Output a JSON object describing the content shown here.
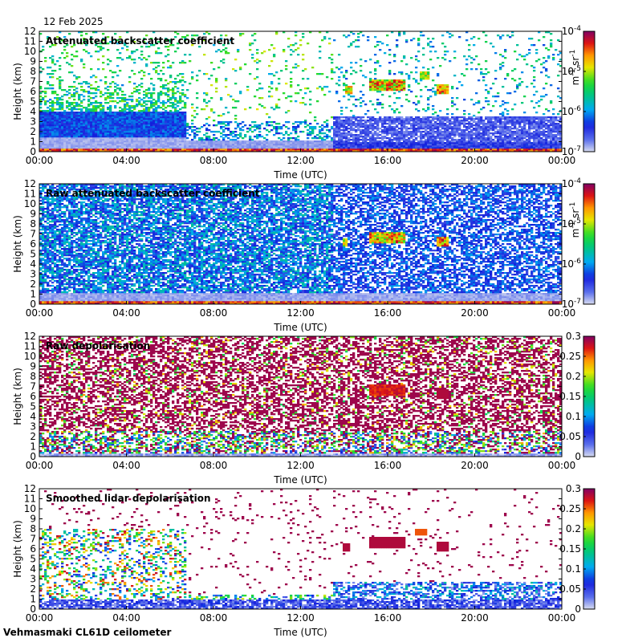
{
  "figure": {
    "date": "12 Feb 2025",
    "instrument": "Vehmasmaki CL61D ceilometer"
  },
  "chart_data": [
    {
      "type": "heatmap",
      "title": "Attenuated backscatter coefficient",
      "xlabel": "Time (UTC)",
      "ylabel": "Height (km)",
      "xticks": [
        "00:00",
        "04:00",
        "08:00",
        "12:00",
        "16:00",
        "20:00",
        "00:00"
      ],
      "yticks": [
        "0",
        "1",
        "2",
        "3",
        "4",
        "5",
        "6",
        "7",
        "8",
        "9",
        "10",
        "11",
        "12"
      ],
      "ylim": [
        0,
        12
      ],
      "xlim_hours": [
        0,
        24
      ],
      "colorbar": {
        "scale": "log",
        "unit": "m-1 sr-1",
        "ticks": [
          "10-7",
          "10-6",
          "10-5",
          "10-4"
        ],
        "range": [
          1e-07,
          0.0001
        ]
      },
      "features": {
        "step_change_hour": 13.5,
        "cloud_hours": [
          13.7,
          18.6
        ],
        "cloud_height_km": [
          5.5,
          8.0
        ]
      }
    },
    {
      "type": "heatmap",
      "title": "Raw attenuated backscatter coefficient",
      "xlabel": "Time (UTC)",
      "ylabel": "Height (km)",
      "xticks": [
        "00:00",
        "04:00",
        "08:00",
        "12:00",
        "16:00",
        "20:00",
        "00:00"
      ],
      "yticks": [
        "0",
        "1",
        "2",
        "3",
        "4",
        "5",
        "6",
        "7",
        "8",
        "9",
        "10",
        "11",
        "12"
      ],
      "ylim": [
        0,
        12
      ],
      "xlim_hours": [
        0,
        24
      ],
      "colorbar": {
        "scale": "log",
        "unit": "m-1 sr-1",
        "ticks": [
          "10-7",
          "10-6",
          "10-5",
          "10-4"
        ],
        "range": [
          1e-07,
          0.0001
        ]
      }
    },
    {
      "type": "heatmap",
      "title": "Raw depolarisation",
      "xlabel": "Time (UTC)",
      "ylabel": "Height (km)",
      "xticks": [
        "00:00",
        "04:00",
        "08:00",
        "12:00",
        "16:00",
        "20:00",
        "00:00"
      ],
      "yticks": [
        "0",
        "1",
        "2",
        "3",
        "4",
        "5",
        "6",
        "7",
        "8",
        "9",
        "10",
        "11",
        "12"
      ],
      "ylim": [
        0,
        12
      ],
      "xlim_hours": [
        0,
        24
      ],
      "colorbar": {
        "scale": "linear",
        "ticks": [
          "0",
          "0.05",
          "0.1",
          "0.15",
          "0.2",
          "0.25",
          "0.3"
        ],
        "range": [
          0,
          0.3
        ]
      }
    },
    {
      "type": "heatmap",
      "title": "Smoothed lidar depolarisation",
      "xlabel": "Time (UTC)",
      "ylabel": "Height (km)",
      "xticks": [
        "00:00",
        "04:00",
        "08:00",
        "12:00",
        "16:00",
        "20:00",
        "00:00"
      ],
      "yticks": [
        "0",
        "1",
        "2",
        "3",
        "4",
        "5",
        "6",
        "7",
        "8",
        "9",
        "10",
        "11",
        "12"
      ],
      "ylim": [
        0,
        12
      ],
      "xlim_hours": [
        0,
        24
      ],
      "colorbar": {
        "scale": "linear",
        "ticks": [
          "0",
          "0.05",
          "0.1",
          "0.15",
          "0.2",
          "0.25",
          "0.3"
        ],
        "range": [
          0,
          0.3
        ]
      }
    }
  ]
}
